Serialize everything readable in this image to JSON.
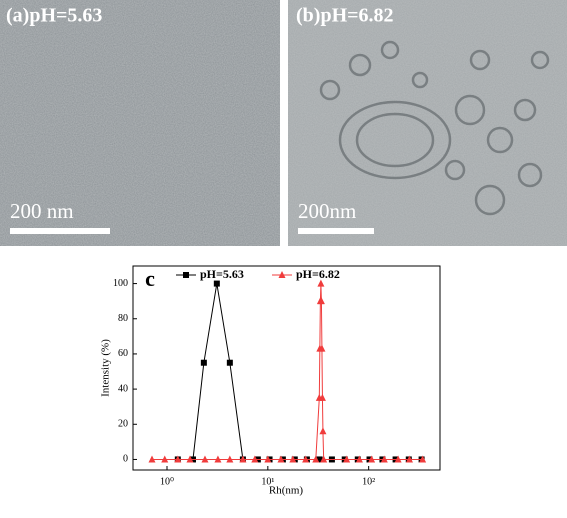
{
  "panels": [
    {
      "label": "(a)pH=5.63",
      "scale_bar": "200 nm"
    },
    {
      "label": "(b)pH=6.82",
      "scale_bar": "200nm"
    }
  ],
  "chart_data": {
    "type": "line",
    "panel_label": "c",
    "xlabel": "Rh(nm)",
    "ylabel": "Intensity (%)",
    "xscale": "log",
    "xlim": [
      0.46,
      510
    ],
    "ylim": [
      -6,
      110
    ],
    "xticks": [
      {
        "value": 1,
        "label": "10⁰"
      },
      {
        "value": 10,
        "label": "10¹"
      },
      {
        "value": 100,
        "label": "10²"
      }
    ],
    "yticks": [
      0,
      20,
      40,
      60,
      80,
      100
    ],
    "legend": "top",
    "series": [
      {
        "name": "pH=5.63",
        "color": "#000000",
        "marker": "square",
        "x": [
          1.28,
          1.81,
          2.32,
          3.12,
          4.2,
          5.66,
          7.96,
          10.4,
          14.1,
          18.5,
          24.4,
          32.6,
          43.2,
          57.9,
          78,
          102,
          137,
          185,
          250,
          335
        ],
        "values": [
          0,
          0,
          55,
          100,
          55,
          0,
          0,
          0,
          0,
          0,
          0,
          0,
          0,
          0,
          0,
          0,
          0,
          0,
          0,
          0
        ]
      },
      {
        "name": "pH=6.82",
        "color": "#f03c3c",
        "marker": "triangle",
        "x": [
          0.71,
          0.95,
          1.28,
          1.69,
          2.38,
          3.2,
          4.2,
          5.66,
          7.43,
          10.0,
          13.5,
          17.7,
          23.7,
          29.9,
          32.4,
          32.8,
          33.2,
          33.6,
          34.0,
          34.4,
          34.8,
          35.2,
          35.8,
          60.5,
          81,
          107,
          143,
          196,
          254,
          343
        ],
        "values": [
          0,
          0,
          0,
          0,
          0,
          0,
          0,
          0,
          0,
          0,
          0,
          0,
          0,
          0,
          35,
          63,
          90,
          100,
          90,
          63,
          35,
          16,
          0,
          0,
          0,
          0,
          0,
          0,
          0,
          0
        ]
      }
    ]
  }
}
